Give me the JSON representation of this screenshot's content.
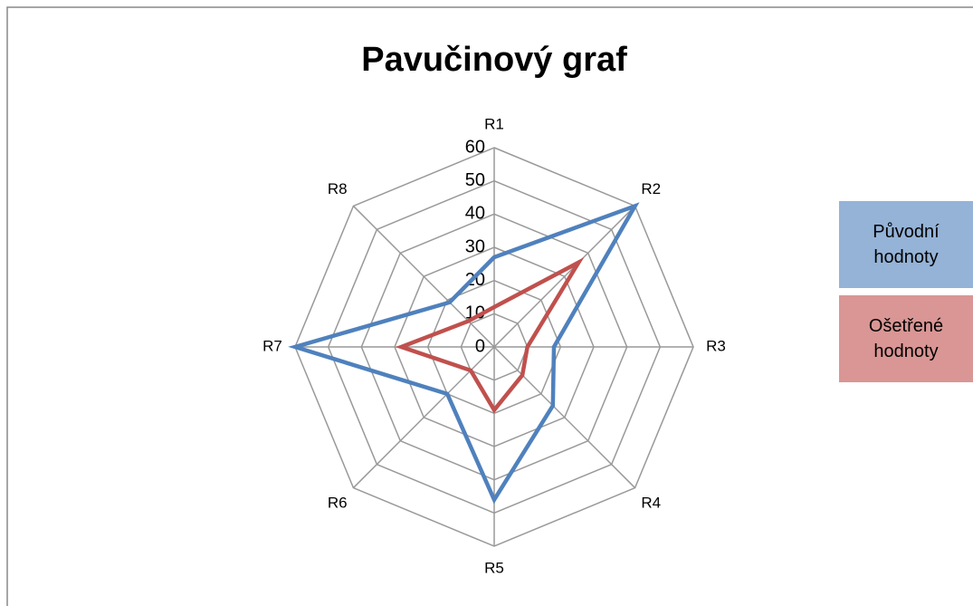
{
  "chart_data": {
    "type": "radar",
    "title": "Pavučinový graf",
    "categories": [
      "R1",
      "R2",
      "R3",
      "R4",
      "R5",
      "R6",
      "R7",
      "R8"
    ],
    "series": [
      {
        "name": "Původní hodnoty",
        "color": "#4f81bd",
        "values": [
          27,
          60,
          18,
          25,
          46,
          20,
          60,
          19
        ]
      },
      {
        "name": "Ošetřené hodnoty",
        "color": "#c0504d",
        "values": [
          12,
          36,
          10,
          12,
          19,
          10,
          28,
          11
        ]
      }
    ],
    "legend_colors": [
      "#95b3d7",
      "#d99694"
    ],
    "rlim": [
      0,
      60
    ],
    "rticks": [
      0,
      10,
      20,
      30,
      40,
      50,
      60
    ],
    "grid": true,
    "legend": "right"
  }
}
